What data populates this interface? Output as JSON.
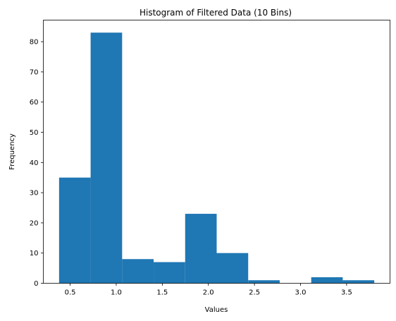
{
  "chart_data": {
    "type": "bar",
    "title": "Histogram of Filtered Data (10 Bins)",
    "xlabel": "Values",
    "ylabel": "Frequency",
    "bin_edges": [
      0.38,
      0.722,
      1.064,
      1.406,
      1.748,
      2.09,
      2.432,
      2.774,
      3.116,
      3.458,
      3.8
    ],
    "values": [
      35,
      83,
      8,
      7,
      23,
      10,
      1,
      0,
      2,
      1
    ],
    "xlim": [
      0.209,
      3.971
    ],
    "ylim": [
      0,
      87.15
    ],
    "xticks": [
      0.5,
      1.0,
      1.5,
      2.0,
      2.5,
      3.0,
      3.5
    ],
    "xtick_labels": [
      "0.5",
      "1.0",
      "1.5",
      "2.0",
      "2.5",
      "3.0",
      "3.5"
    ],
    "yticks": [
      0,
      10,
      20,
      30,
      40,
      50,
      60,
      70,
      80
    ],
    "ytick_labels": [
      "0",
      "10",
      "20",
      "30",
      "40",
      "50",
      "60",
      "70",
      "80"
    ],
    "bar_color": "#1f77b4",
    "grid": false,
    "legend": "none"
  }
}
